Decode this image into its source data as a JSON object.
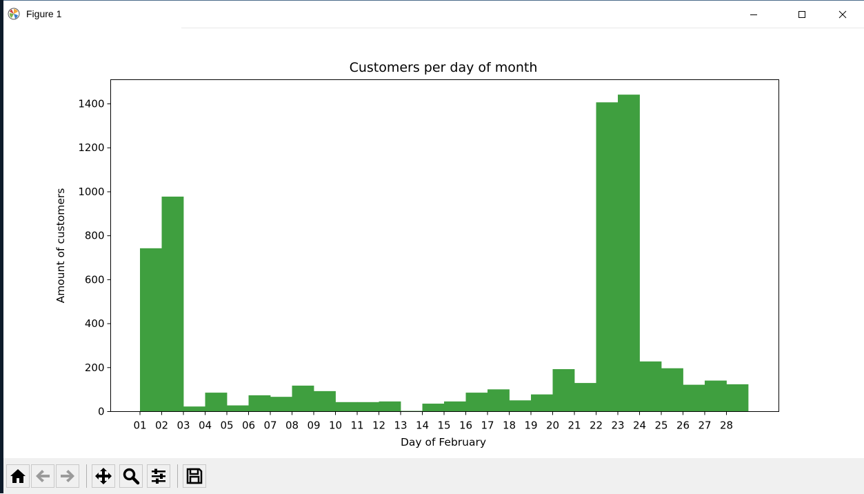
{
  "window": {
    "title": "Figure 1"
  },
  "toolbar": {
    "buttons": [
      "home-icon",
      "back-arrow-icon",
      "forward-arrow-icon",
      "pan-icon",
      "zoom-icon",
      "configure-subplots-icon",
      "save-icon"
    ]
  },
  "colors": {
    "bar": "#3f9f3f",
    "axis": "#000000"
  },
  "chart_data": {
    "type": "bar",
    "title": "Customers per day of month",
    "xlabel": "Day of February",
    "ylabel": "Amount of customers",
    "categories": [
      "01",
      "02",
      "03",
      "04",
      "05",
      "06",
      "07",
      "08",
      "09",
      "10",
      "11",
      "12",
      "13",
      "14",
      "15",
      "16",
      "17",
      "18",
      "19",
      "20",
      "21",
      "22",
      "23",
      "24",
      "25",
      "26",
      "27",
      "28"
    ],
    "values": [
      743,
      978,
      23,
      86,
      28,
      74,
      67,
      118,
      93,
      43,
      43,
      46,
      3,
      36,
      46,
      86,
      101,
      51,
      78,
      193,
      130,
      1407,
      1442,
      228,
      197,
      122,
      141,
      124
    ],
    "ylim": [
      0,
      1510
    ],
    "yticks": [
      0,
      200,
      400,
      600,
      800,
      1000,
      1200,
      1400
    ],
    "grid": false,
    "legend": "none"
  }
}
